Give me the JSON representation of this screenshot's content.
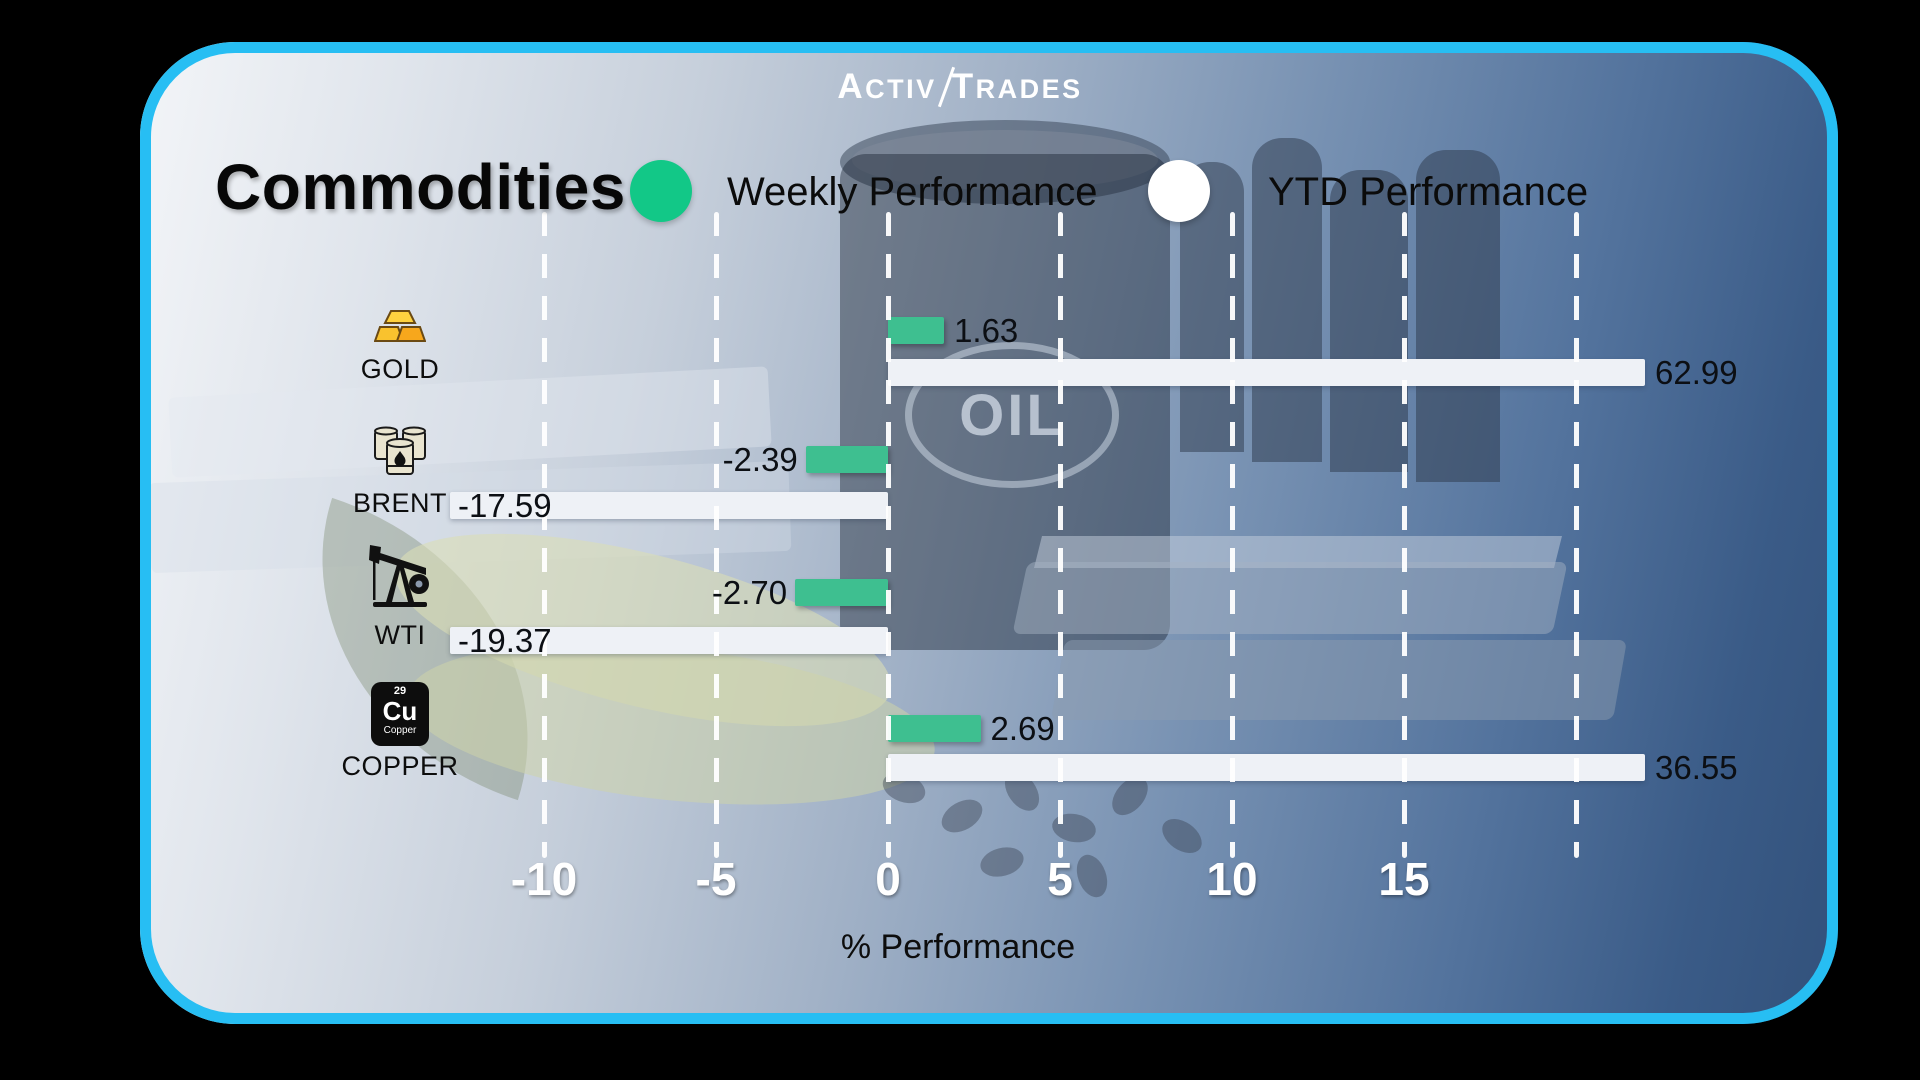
{
  "logo": {
    "text1": "Activ",
    "text2": "Trades"
  },
  "header": {
    "title": "Commodities"
  },
  "legend": {
    "weekly": {
      "label": "Weekly Performance",
      "color": "#12c887"
    },
    "ytd": {
      "label": "YTD Performance",
      "color": "#ffffff"
    }
  },
  "background": {
    "barrel_text": "OIL"
  },
  "copper_tile": {
    "atomic_number": "29",
    "symbol": "Cu",
    "element_name": "Copper"
  },
  "chart_data": {
    "type": "bar",
    "orientation": "horizontal",
    "title": "Commodities",
    "categories": [
      "GOLD",
      "BRENT",
      "WTI",
      "COPPER"
    ],
    "series": [
      {
        "name": "Weekly Performance",
        "color": "#3ebf90",
        "values": [
          1.63,
          -2.39,
          -2.7,
          2.69
        ],
        "labels": [
          "1.63",
          "-2.39",
          "-2.70",
          "2.69"
        ]
      },
      {
        "name": "YTD Performance",
        "color": "#eef1f6",
        "values": [
          62.99,
          -17.59,
          -19.37,
          36.55
        ],
        "labels": [
          "62.99",
          "-17.59",
          "-19.37",
          "36.55"
        ]
      }
    ],
    "xlabel": "% Performance",
    "ticks": [
      -10,
      -5,
      0,
      5,
      10,
      15
    ],
    "tick_labels": [
      "-10",
      "-5",
      "0",
      "5",
      "10",
      "15"
    ],
    "grid_ticks": [
      -10,
      -5,
      0,
      5,
      10,
      15,
      20
    ],
    "xlim": [
      -12.7,
      22
    ],
    "grid": "vertical-dashed-white",
    "legend_position": "top"
  }
}
